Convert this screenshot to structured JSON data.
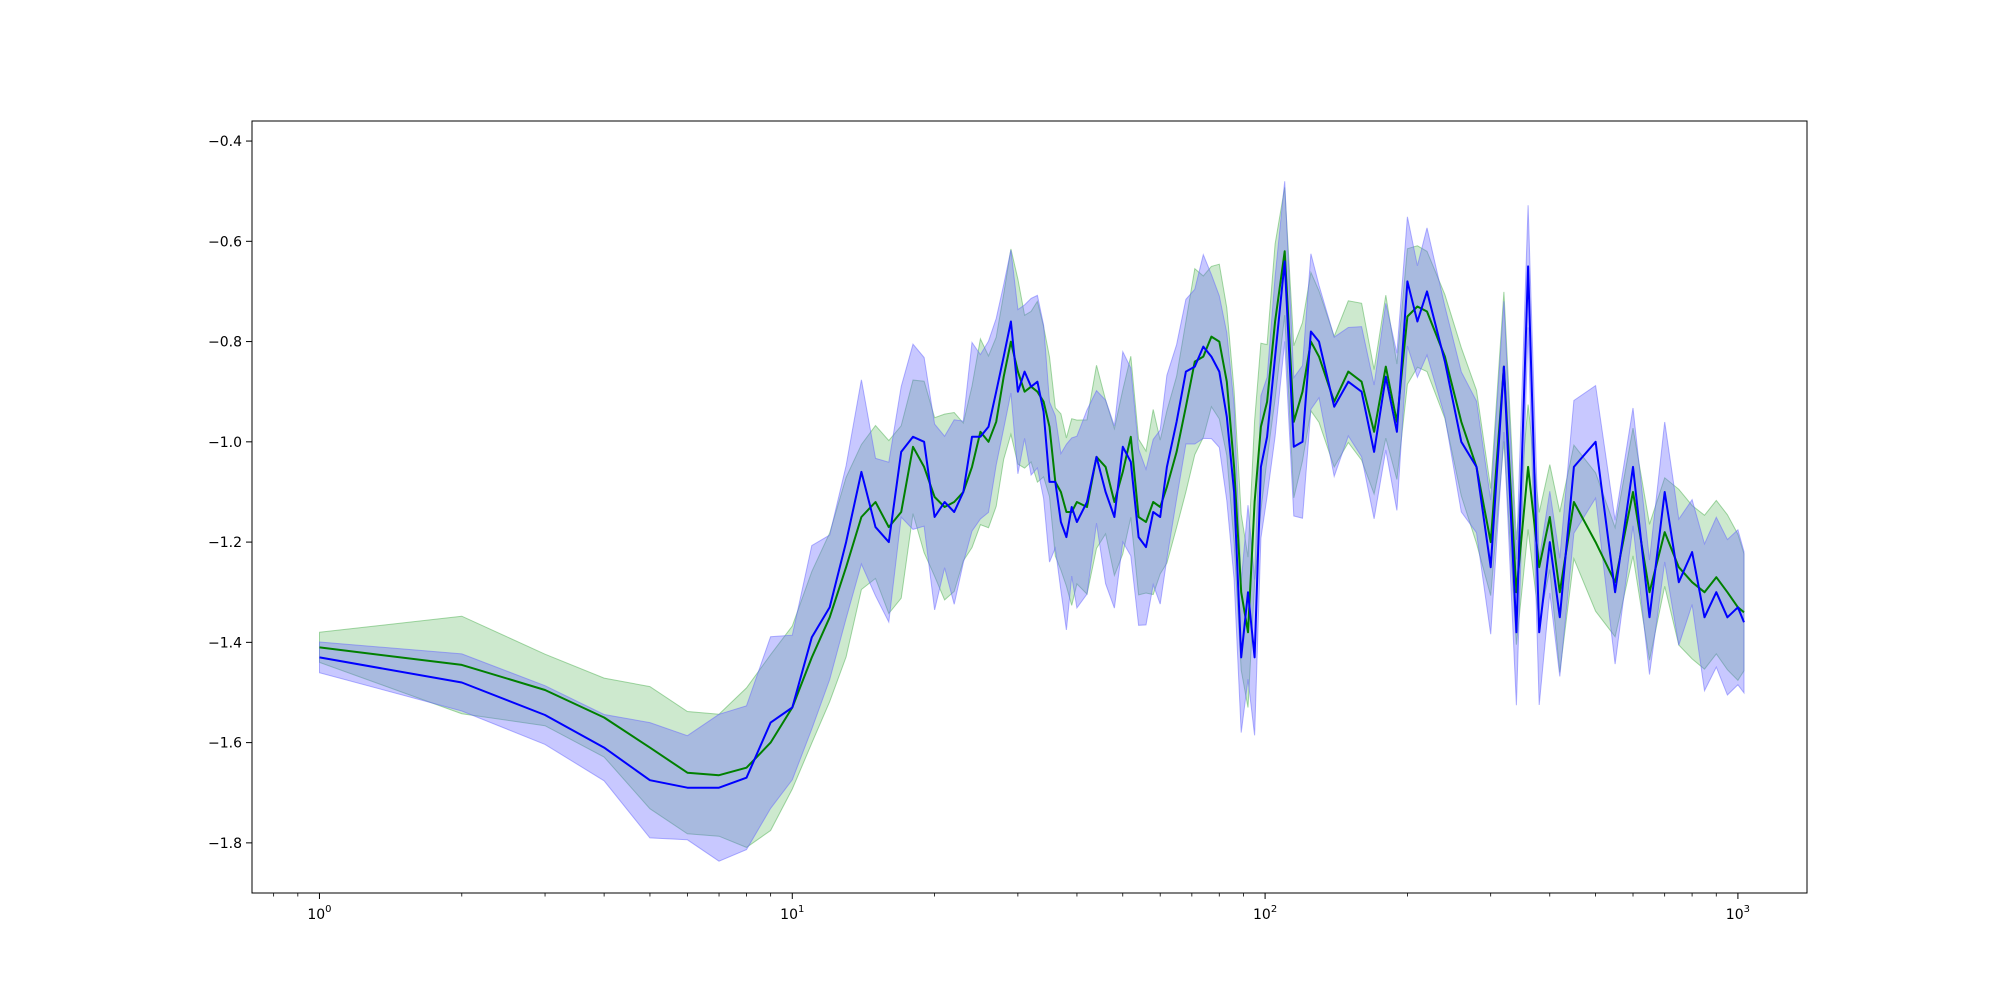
{
  "chart_data": {
    "type": "line",
    "title": "",
    "xlabel": "",
    "ylabel": "",
    "xscale": "log",
    "xlim": [
      0.72,
      1400
    ],
    "ylim": [
      -1.9,
      -0.36
    ],
    "grid": false,
    "legend": "none",
    "x_ticks": [
      {
        "value": 1,
        "base": "10",
        "exp": "0"
      },
      {
        "value": 10,
        "base": "10",
        "exp": "1"
      },
      {
        "value": 100,
        "base": "10",
        "exp": "2"
      },
      {
        "value": 1000,
        "base": "10",
        "exp": "3"
      }
    ],
    "y_ticks": [
      {
        "value": -1.8,
        "label": "−1.8"
      },
      {
        "value": -1.6,
        "label": "−1.6"
      },
      {
        "value": -1.4,
        "label": "−1.4"
      },
      {
        "value": -1.2,
        "label": "−1.2"
      },
      {
        "value": -1.0,
        "label": "−1.0"
      },
      {
        "value": -0.8,
        "label": "−0.8"
      },
      {
        "value": -0.6,
        "label": "−0.6"
      },
      {
        "value": -0.4,
        "label": "−0.4"
      }
    ],
    "series": [
      {
        "color": "#008000",
        "band_color": "#4caf50",
        "band_opacity": 0.28,
        "x": [
          1,
          2,
          3,
          4,
          5,
          6,
          7,
          8,
          9,
          10,
          11,
          12,
          13,
          14,
          15,
          16,
          17,
          18,
          19,
          20,
          21,
          22,
          23,
          24,
          25,
          26,
          27,
          28,
          29,
          30,
          31,
          32,
          33,
          34,
          35,
          36,
          37,
          38,
          39,
          40,
          42,
          44,
          46,
          48,
          50,
          52,
          54,
          56,
          58,
          60,
          62,
          65,
          68,
          71,
          74,
          77,
          80,
          83,
          86,
          89,
          92,
          95,
          98,
          101,
          105,
          110,
          115,
          120,
          125,
          130,
          140,
          150,
          160,
          170,
          180,
          190,
          200,
          210,
          220,
          240,
          260,
          280,
          300,
          320,
          340,
          360,
          380,
          400,
          420,
          450,
          500,
          550,
          600,
          650,
          700,
          750,
          800,
          850,
          900,
          950,
          1000,
          1030
        ],
        "y": [
          -1.41,
          -1.445,
          -1.495,
          -1.55,
          -1.61,
          -1.66,
          -1.665,
          -1.65,
          -1.6,
          -1.53,
          -1.43,
          -1.35,
          -1.25,
          -1.15,
          -1.12,
          -1.17,
          -1.14,
          -1.01,
          -1.05,
          -1.11,
          -1.13,
          -1.12,
          -1.1,
          -1.05,
          -0.98,
          -1.0,
          -0.96,
          -0.87,
          -0.8,
          -0.86,
          -0.9,
          -0.89,
          -0.9,
          -0.92,
          -0.97,
          -1.08,
          -1.1,
          -1.14,
          -1.14,
          -1.12,
          -1.13,
          -1.03,
          -1.05,
          -1.12,
          -1.06,
          -0.99,
          -1.15,
          -1.16,
          -1.12,
          -1.13,
          -1.09,
          -1.02,
          -0.93,
          -0.84,
          -0.83,
          -0.79,
          -0.8,
          -0.88,
          -1.05,
          -1.3,
          -1.38,
          -1.12,
          -0.97,
          -0.92,
          -0.76,
          -0.62,
          -0.96,
          -0.9,
          -0.8,
          -0.83,
          -0.92,
          -0.86,
          -0.88,
          -0.98,
          -0.85,
          -0.96,
          -0.75,
          -0.73,
          -0.74,
          -0.83,
          -0.96,
          -1.05,
          -1.2,
          -0.85,
          -1.3,
          -1.05,
          -1.25,
          -1.15,
          -1.3,
          -1.12,
          -1.2,
          -1.28,
          -1.1,
          -1.3,
          -1.18,
          -1.25,
          -1.28,
          -1.3,
          -1.27,
          -1.3,
          -1.33,
          -1.34
        ]
      },
      {
        "color": "#0000ff",
        "band_color": "#6666ff",
        "band_opacity": 0.36,
        "x": [
          1,
          2,
          3,
          4,
          5,
          6,
          7,
          8,
          9,
          10,
          11,
          12,
          13,
          14,
          15,
          16,
          17,
          18,
          19,
          20,
          21,
          22,
          23,
          24,
          25,
          26,
          27,
          28,
          29,
          30,
          31,
          32,
          33,
          34,
          35,
          36,
          37,
          38,
          39,
          40,
          42,
          44,
          46,
          48,
          50,
          52,
          54,
          56,
          58,
          60,
          62,
          65,
          68,
          71,
          74,
          77,
          80,
          83,
          86,
          89,
          92,
          95,
          98,
          101,
          105,
          110,
          115,
          120,
          125,
          130,
          140,
          150,
          160,
          170,
          180,
          190,
          200,
          210,
          220,
          240,
          260,
          280,
          300,
          320,
          340,
          360,
          380,
          400,
          420,
          450,
          500,
          550,
          600,
          650,
          700,
          750,
          800,
          850,
          900,
          950,
          1000,
          1030
        ],
        "y": [
          -1.43,
          -1.48,
          -1.545,
          -1.61,
          -1.675,
          -1.69,
          -1.69,
          -1.67,
          -1.56,
          -1.53,
          -1.39,
          -1.33,
          -1.2,
          -1.06,
          -1.17,
          -1.2,
          -1.02,
          -0.99,
          -1.0,
          -1.15,
          -1.12,
          -1.14,
          -1.1,
          -0.99,
          -0.99,
          -0.97,
          -0.9,
          -0.83,
          -0.76,
          -0.9,
          -0.86,
          -0.89,
          -0.88,
          -0.94,
          -1.08,
          -1.08,
          -1.16,
          -1.19,
          -1.13,
          -1.16,
          -1.12,
          -1.03,
          -1.1,
          -1.15,
          -1.01,
          -1.04,
          -1.19,
          -1.21,
          -1.14,
          -1.15,
          -1.05,
          -0.96,
          -0.86,
          -0.85,
          -0.81,
          -0.83,
          -0.86,
          -0.95,
          -1.1,
          -1.43,
          -1.3,
          -1.43,
          -1.05,
          -0.99,
          -0.83,
          -0.64,
          -1.01,
          -1.0,
          -0.78,
          -0.8,
          -0.93,
          -0.88,
          -0.9,
          -1.02,
          -0.87,
          -0.98,
          -0.68,
          -0.76,
          -0.7,
          -0.84,
          -1.0,
          -1.05,
          -1.25,
          -0.85,
          -1.38,
          -0.65,
          -1.38,
          -1.2,
          -1.35,
          -1.05,
          -1.0,
          -1.3,
          -1.05,
          -1.35,
          -1.1,
          -1.28,
          -1.22,
          -1.35,
          -1.3,
          -1.35,
          -1.33,
          -1.36
        ]
      }
    ]
  }
}
